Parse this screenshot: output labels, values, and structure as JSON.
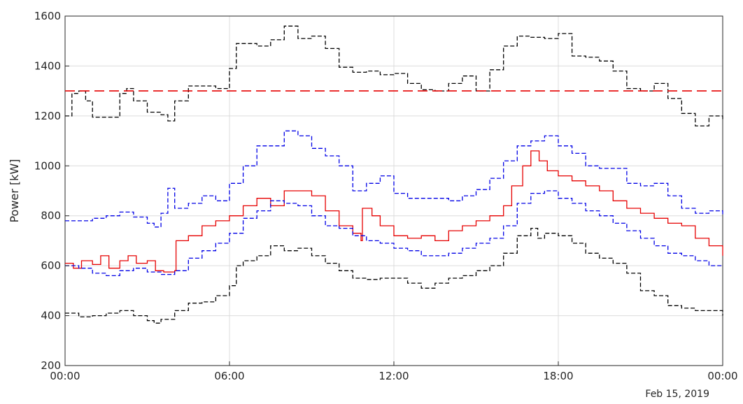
{
  "chart_data": {
    "type": "line",
    "ylabel": "Power [kW]",
    "xlabel": "",
    "date_label": "Feb 15, 2019",
    "x_range_hours": [
      0,
      24
    ],
    "ylim": [
      200,
      1600
    ],
    "x_ticks": [
      {
        "hour": 0,
        "label": "00:00"
      },
      {
        "hour": 6,
        "label": "06:00"
      },
      {
        "hour": 12,
        "label": "12:00"
      },
      {
        "hour": 18,
        "label": "18:00"
      },
      {
        "hour": 24,
        "label": "00:00"
      }
    ],
    "y_ticks": [
      {
        "value": 200,
        "label": "200"
      },
      {
        "value": 400,
        "label": "400"
      },
      {
        "value": 600,
        "label": "600"
      },
      {
        "value": 800,
        "label": "800"
      },
      {
        "value": 1000,
        "label": "1000"
      },
      {
        "value": 1200,
        "label": "1200"
      },
      {
        "value": 1400,
        "label": "1400"
      },
      {
        "value": 1600,
        "label": "1600"
      }
    ],
    "grid": true,
    "series": [
      {
        "key": "upper_outer",
        "color": "#000000",
        "style": "dashed",
        "step": true,
        "points": [
          [
            0,
            1200
          ],
          [
            0.25,
            1290
          ],
          [
            0.5,
            1300
          ],
          [
            0.75,
            1260
          ],
          [
            1,
            1195
          ],
          [
            1.5,
            1195
          ],
          [
            2,
            1290
          ],
          [
            2.25,
            1310
          ],
          [
            2.5,
            1260
          ],
          [
            3,
            1215
          ],
          [
            3.5,
            1205
          ],
          [
            3.75,
            1180
          ],
          [
            4,
            1260
          ],
          [
            4.5,
            1320
          ],
          [
            5,
            1320
          ],
          [
            5.5,
            1310
          ],
          [
            6,
            1390
          ],
          [
            6.25,
            1490
          ],
          [
            7,
            1480
          ],
          [
            7.5,
            1505
          ],
          [
            8,
            1560
          ],
          [
            8.5,
            1510
          ],
          [
            9,
            1520
          ],
          [
            9.5,
            1470
          ],
          [
            10,
            1395
          ],
          [
            10.5,
            1375
          ],
          [
            11,
            1380
          ],
          [
            11.5,
            1365
          ],
          [
            12,
            1370
          ],
          [
            12.5,
            1330
          ],
          [
            13,
            1305
          ],
          [
            13.5,
            1300
          ],
          [
            14,
            1330
          ],
          [
            14.5,
            1360
          ],
          [
            15,
            1300
          ],
          [
            15.5,
            1385
          ],
          [
            16,
            1480
          ],
          [
            16.5,
            1520
          ],
          [
            17,
            1515
          ],
          [
            17.5,
            1510
          ],
          [
            18,
            1530
          ],
          [
            18.5,
            1440
          ],
          [
            19,
            1435
          ],
          [
            19.5,
            1420
          ],
          [
            20,
            1380
          ],
          [
            20.5,
            1310
          ],
          [
            21,
            1300
          ],
          [
            21.5,
            1330
          ],
          [
            22,
            1270
          ],
          [
            22.5,
            1210
          ],
          [
            23,
            1160
          ],
          [
            23.5,
            1200
          ],
          [
            24,
            1185
          ]
        ]
      },
      {
        "key": "threshold",
        "color": "#e60000",
        "style": "dashed-long",
        "step": false,
        "points": [
          [
            0,
            1300
          ],
          [
            24,
            1300
          ]
        ]
      },
      {
        "key": "upper_inner",
        "color": "#0000e6",
        "style": "dashed",
        "step": true,
        "points": [
          [
            0,
            780
          ],
          [
            0.5,
            780
          ],
          [
            1,
            790
          ],
          [
            1.5,
            800
          ],
          [
            2,
            815
          ],
          [
            2.5,
            795
          ],
          [
            3,
            770
          ],
          [
            3.25,
            755
          ],
          [
            3.5,
            810
          ],
          [
            3.75,
            910
          ],
          [
            4,
            830
          ],
          [
            4.5,
            850
          ],
          [
            5,
            880
          ],
          [
            5.5,
            860
          ],
          [
            6,
            930
          ],
          [
            6.5,
            1000
          ],
          [
            7,
            1080
          ],
          [
            7.5,
            1080
          ],
          [
            8,
            1140
          ],
          [
            8.5,
            1120
          ],
          [
            9,
            1070
          ],
          [
            9.5,
            1040
          ],
          [
            10,
            1000
          ],
          [
            10.5,
            900
          ],
          [
            11,
            930
          ],
          [
            11.5,
            960
          ],
          [
            12,
            890
          ],
          [
            12.5,
            870
          ],
          [
            13,
            870
          ],
          [
            13.5,
            870
          ],
          [
            14,
            860
          ],
          [
            14.5,
            880
          ],
          [
            15,
            905
          ],
          [
            15.5,
            950
          ],
          [
            16,
            1020
          ],
          [
            16.5,
            1080
          ],
          [
            17,
            1100
          ],
          [
            17.5,
            1120
          ],
          [
            18,
            1080
          ],
          [
            18.5,
            1050
          ],
          [
            19,
            1000
          ],
          [
            19.5,
            990
          ],
          [
            20,
            990
          ],
          [
            20.5,
            930
          ],
          [
            21,
            920
          ],
          [
            21.5,
            930
          ],
          [
            22,
            880
          ],
          [
            22.5,
            830
          ],
          [
            23,
            810
          ],
          [
            23.5,
            820
          ],
          [
            24,
            800
          ]
        ]
      },
      {
        "key": "actual",
        "color": "#e60000",
        "style": "solid",
        "step": true,
        "points": [
          [
            0,
            610
          ],
          [
            0.3,
            590
          ],
          [
            0.6,
            620
          ],
          [
            1,
            605
          ],
          [
            1.3,
            640
          ],
          [
            1.6,
            590
          ],
          [
            2,
            620
          ],
          [
            2.3,
            640
          ],
          [
            2.6,
            610
          ],
          [
            3,
            620
          ],
          [
            3.3,
            580
          ],
          [
            3.6,
            575
          ],
          [
            4,
            580
          ],
          [
            4.05,
            700
          ],
          [
            4.5,
            720
          ],
          [
            5,
            760
          ],
          [
            5.5,
            780
          ],
          [
            6,
            800
          ],
          [
            6.5,
            840
          ],
          [
            7,
            870
          ],
          [
            7.5,
            840
          ],
          [
            8,
            900
          ],
          [
            8.5,
            900
          ],
          [
            9,
            880
          ],
          [
            9.5,
            820
          ],
          [
            10,
            760
          ],
          [
            10.5,
            730
          ],
          [
            10.8,
            700
          ],
          [
            10.85,
            830
          ],
          [
            11.2,
            800
          ],
          [
            11.5,
            760
          ],
          [
            12,
            720
          ],
          [
            12.5,
            710
          ],
          [
            13,
            720
          ],
          [
            13.5,
            700
          ],
          [
            14,
            740
          ],
          [
            14.5,
            760
          ],
          [
            15,
            780
          ],
          [
            15.5,
            800
          ],
          [
            16,
            840
          ],
          [
            16.3,
            920
          ],
          [
            16.7,
            1000
          ],
          [
            17,
            1060
          ],
          [
            17.3,
            1020
          ],
          [
            17.6,
            980
          ],
          [
            18,
            960
          ],
          [
            18.5,
            940
          ],
          [
            19,
            920
          ],
          [
            19.5,
            900
          ],
          [
            20,
            860
          ],
          [
            20.5,
            830
          ],
          [
            21,
            810
          ],
          [
            21.5,
            790
          ],
          [
            22,
            770
          ],
          [
            22.5,
            760
          ],
          [
            23,
            710
          ],
          [
            23.5,
            680
          ],
          [
            24,
            640
          ]
        ]
      },
      {
        "key": "lower_inner",
        "color": "#0000e6",
        "style": "dashed",
        "step": true,
        "points": [
          [
            0,
            600
          ],
          [
            0.5,
            590
          ],
          [
            1,
            570
          ],
          [
            1.5,
            560
          ],
          [
            2,
            580
          ],
          [
            2.5,
            590
          ],
          [
            3,
            575
          ],
          [
            3.5,
            565
          ],
          [
            4,
            580
          ],
          [
            4.5,
            630
          ],
          [
            5,
            660
          ],
          [
            5.5,
            690
          ],
          [
            6,
            730
          ],
          [
            6.5,
            790
          ],
          [
            7,
            820
          ],
          [
            7.5,
            860
          ],
          [
            8,
            850
          ],
          [
            8.5,
            840
          ],
          [
            9,
            800
          ],
          [
            9.5,
            760
          ],
          [
            10,
            750
          ],
          [
            10.5,
            720
          ],
          [
            11,
            700
          ],
          [
            11.5,
            690
          ],
          [
            12,
            670
          ],
          [
            12.5,
            660
          ],
          [
            13,
            640
          ],
          [
            13.5,
            640
          ],
          [
            14,
            650
          ],
          [
            14.5,
            670
          ],
          [
            15,
            690
          ],
          [
            15.5,
            710
          ],
          [
            16,
            760
          ],
          [
            16.5,
            850
          ],
          [
            17,
            890
          ],
          [
            17.5,
            900
          ],
          [
            18,
            870
          ],
          [
            18.5,
            850
          ],
          [
            19,
            820
          ],
          [
            19.5,
            800
          ],
          [
            20,
            770
          ],
          [
            20.5,
            740
          ],
          [
            21,
            710
          ],
          [
            21.5,
            680
          ],
          [
            22,
            650
          ],
          [
            22.5,
            640
          ],
          [
            23,
            620
          ],
          [
            23.5,
            600
          ],
          [
            24,
            600
          ]
        ]
      },
      {
        "key": "lower_outer",
        "color": "#000000",
        "style": "dashed",
        "step": true,
        "points": [
          [
            0,
            410
          ],
          [
            0.5,
            395
          ],
          [
            1,
            400
          ],
          [
            1.5,
            410
          ],
          [
            2,
            420
          ],
          [
            2.5,
            400
          ],
          [
            3,
            380
          ],
          [
            3.25,
            370
          ],
          [
            3.5,
            385
          ],
          [
            4,
            420
          ],
          [
            4.5,
            450
          ],
          [
            5,
            455
          ],
          [
            5.5,
            480
          ],
          [
            6,
            520
          ],
          [
            6.25,
            600
          ],
          [
            6.5,
            620
          ],
          [
            7,
            640
          ],
          [
            7.5,
            680
          ],
          [
            8,
            660
          ],
          [
            8.5,
            670
          ],
          [
            9,
            640
          ],
          [
            9.5,
            610
          ],
          [
            10,
            580
          ],
          [
            10.5,
            550
          ],
          [
            11,
            545
          ],
          [
            11.5,
            550
          ],
          [
            12,
            550
          ],
          [
            12.5,
            530
          ],
          [
            13,
            510
          ],
          [
            13.5,
            530
          ],
          [
            14,
            550
          ],
          [
            14.5,
            560
          ],
          [
            15,
            580
          ],
          [
            15.5,
            600
          ],
          [
            16,
            650
          ],
          [
            16.5,
            720
          ],
          [
            17,
            750
          ],
          [
            17.25,
            710
          ],
          [
            17.5,
            730
          ],
          [
            18,
            720
          ],
          [
            18.5,
            690
          ],
          [
            19,
            650
          ],
          [
            19.5,
            630
          ],
          [
            20,
            610
          ],
          [
            20.5,
            570
          ],
          [
            21,
            500
          ],
          [
            21.5,
            480
          ],
          [
            22,
            440
          ],
          [
            22.5,
            430
          ],
          [
            23,
            420
          ],
          [
            23.5,
            420
          ],
          [
            24,
            400
          ]
        ]
      }
    ]
  }
}
